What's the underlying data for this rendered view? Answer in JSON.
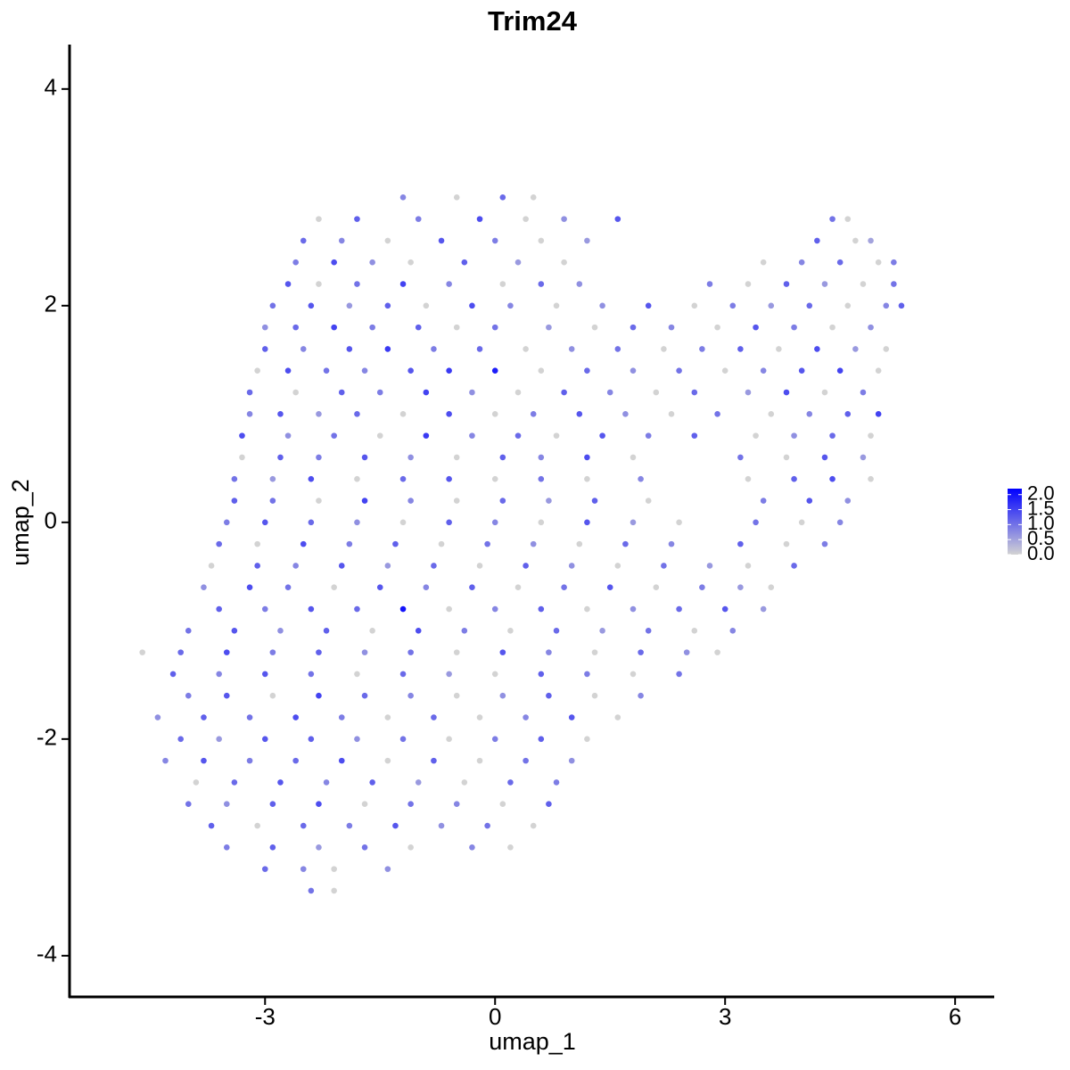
{
  "chart_data": {
    "type": "scatter",
    "title": "Trim24",
    "x_label": "umap_1",
    "y_label": "umap_2",
    "xlim": [
      -5.55,
      6.51
    ],
    "ylim": [
      -4.38,
      4.41
    ],
    "xticks": [
      -3,
      0,
      3,
      6
    ],
    "yticks": [
      -4,
      -2,
      0,
      2,
      4
    ],
    "color_low": "#d3d3d3",
    "color_high": "#0000ff",
    "color_lim": [
      0,
      2.2
    ],
    "legend_ticks": [
      {
        "value": 0,
        "label": "0.0"
      },
      {
        "value": 0.5,
        "label": "0.5"
      },
      {
        "value": 1,
        "label": "1.0"
      },
      {
        "value": 1.5,
        "label": "1.5"
      },
      {
        "value": 2,
        "label": "2.0"
      }
    ],
    "x": [
      -1.2,
      -0.5,
      0.1,
      0.5,
      -2.3,
      -1.8,
      -1.0,
      -0.2,
      0.4,
      0.9,
      1.6,
      4.4,
      4.6,
      -2.5,
      -2.0,
      -1.4,
      -0.7,
      0.0,
      0.6,
      1.2,
      4.2,
      4.7,
      4.9,
      -2.6,
      -2.1,
      -1.6,
      -1.1,
      -0.4,
      0.3,
      0.9,
      3.5,
      4.0,
      4.5,
      5.0,
      5.2,
      -2.7,
      -2.3,
      -1.8,
      -1.2,
      -0.6,
      0.1,
      0.6,
      1.1,
      2.8,
      3.3,
      3.8,
      4.3,
      4.8,
      5.2,
      -2.9,
      -2.4,
      -1.9,
      -1.4,
      -0.9,
      -0.3,
      0.2,
      0.8,
      1.4,
      2.0,
      2.6,
      3.1,
      3.6,
      4.1,
      4.6,
      5.1,
      5.3,
      -3.0,
      -2.6,
      -2.1,
      -1.6,
      -1.0,
      -0.5,
      0.0,
      0.7,
      1.3,
      1.8,
      2.3,
      2.9,
      3.4,
      3.9,
      4.4,
      4.9,
      -3.0,
      -2.5,
      -1.9,
      -1.4,
      -0.8,
      -0.2,
      0.4,
      1.0,
      1.6,
      2.2,
      2.7,
      3.2,
      3.7,
      4.2,
      4.7,
      5.1,
      -3.1,
      -2.7,
      -2.2,
      -1.7,
      -1.1,
      -0.6,
      0.0,
      0.6,
      1.2,
      1.8,
      2.4,
      3.0,
      3.5,
      4.0,
      4.5,
      5.0,
      -3.2,
      -2.6,
      -2.0,
      -1.5,
      -0.9,
      -0.3,
      0.3,
      0.9,
      1.5,
      2.1,
      2.6,
      3.3,
      3.8,
      4.3,
      4.8,
      -3.2,
      -2.8,
      -2.3,
      -1.8,
      -1.2,
      -0.6,
      0.0,
      0.5,
      1.1,
      1.7,
      2.3,
      2.9,
      3.6,
      4.1,
      4.6,
      5.0,
      -3.3,
      -2.7,
      -2.1,
      -1.5,
      -0.9,
      -0.3,
      0.3,
      0.8,
      1.4,
      2.0,
      2.6,
      3.4,
      3.9,
      4.4,
      4.9,
      -3.3,
      -2.8,
      -2.3,
      -1.7,
      -1.1,
      -0.5,
      0.1,
      0.6,
      1.2,
      1.8,
      3.2,
      3.8,
      4.3,
      4.8,
      -3.4,
      -2.9,
      -2.4,
      -1.8,
      -1.2,
      -0.6,
      0.0,
      0.6,
      1.2,
      1.9,
      3.3,
      3.9,
      4.4,
      4.9,
      -3.4,
      -2.9,
      -2.3,
      -1.7,
      -1.1,
      -0.5,
      0.1,
      0.7,
      1.3,
      2.0,
      3.5,
      4.1,
      4.6,
      -3.5,
      -3.0,
      -2.4,
      -1.8,
      -1.2,
      -0.6,
      0.0,
      0.6,
      1.2,
      1.8,
      2.4,
      3.4,
      4.0,
      4.5,
      -3.6,
      -3.1,
      -2.5,
      -1.9,
      -1.3,
      -0.7,
      -0.1,
      0.5,
      1.1,
      1.7,
      2.3,
      3.2,
      3.8,
      4.3,
      -3.7,
      -3.1,
      -2.6,
      -2.0,
      -1.4,
      -0.8,
      -0.2,
      0.4,
      1.0,
      1.6,
      2.2,
      2.8,
      3.3,
      3.9,
      -3.8,
      -3.2,
      -2.7,
      -2.1,
      -1.5,
      -0.9,
      -0.3,
      0.3,
      0.9,
      1.5,
      2.1,
      2.7,
      3.2,
      3.6,
      -3.6,
      -3.0,
      -2.4,
      -1.8,
      -1.2,
      -0.6,
      0.0,
      0.6,
      1.2,
      1.8,
      2.4,
      3.0,
      3.5,
      -4.0,
      -3.4,
      -2.8,
      -2.2,
      -1.6,
      -1.0,
      -0.4,
      0.2,
      0.8,
      1.4,
      2.0,
      2.6,
      3.1,
      -4.6,
      -4.1,
      -3.5,
      -2.9,
      -2.3,
      -1.7,
      -1.1,
      -0.5,
      0.1,
      0.7,
      1.3,
      1.9,
      2.5,
      2.9,
      -4.2,
      -3.6,
      -3.0,
      -2.4,
      -1.8,
      -1.2,
      -0.6,
      0.0,
      0.6,
      1.2,
      1.8,
      2.4,
      -4.0,
      -3.5,
      -2.9,
      -2.3,
      -1.7,
      -1.1,
      -0.5,
      0.1,
      0.7,
      1.3,
      1.9,
      -4.4,
      -3.8,
      -3.2,
      -2.6,
      -2.0,
      -1.4,
      -0.8,
      -0.2,
      0.4,
      1.0,
      1.6,
      -4.1,
      -3.6,
      -3.0,
      -2.4,
      -1.8,
      -1.2,
      -0.6,
      0.0,
      0.6,
      1.2,
      -4.3,
      -3.8,
      -3.2,
      -2.6,
      -2.0,
      -1.4,
      -0.8,
      -0.2,
      0.4,
      1.0,
      -3.9,
      -3.4,
      -2.8,
      -2.2,
      -1.6,
      -1.0,
      -0.4,
      0.2,
      0.8,
      -4.0,
      -3.5,
      -2.9,
      -2.3,
      -1.7,
      -1.1,
      -0.5,
      0.1,
      0.7,
      -3.7,
      -3.1,
      -2.5,
      -1.9,
      -1.3,
      -0.7,
      -0.1,
      0.5,
      -3.5,
      -2.9,
      -2.3,
      -1.7,
      -1.1,
      -0.3,
      0.2,
      -3.0,
      -2.5,
      -2.1,
      -1.4,
      -2.4,
      -2.1
    ],
    "y": [
      3.0,
      3.0,
      3.0,
      3.0,
      2.8,
      2.8,
      2.8,
      2.8,
      2.8,
      2.8,
      2.8,
      2.8,
      2.8,
      2.6,
      2.6,
      2.6,
      2.6,
      2.6,
      2.6,
      2.6,
      2.6,
      2.6,
      2.6,
      2.4,
      2.4,
      2.4,
      2.4,
      2.4,
      2.4,
      2.4,
      2.4,
      2.4,
      2.4,
      2.4,
      2.4,
      2.2,
      2.2,
      2.2,
      2.2,
      2.2,
      2.2,
      2.2,
      2.2,
      2.2,
      2.2,
      2.2,
      2.2,
      2.2,
      2.2,
      2.0,
      2.0,
      2.0,
      2.0,
      2.0,
      2.0,
      2.0,
      2.0,
      2.0,
      2.0,
      2.0,
      2.0,
      2.0,
      2.0,
      2.0,
      2.0,
      2.0,
      1.8,
      1.8,
      1.8,
      1.8,
      1.8,
      1.8,
      1.8,
      1.8,
      1.8,
      1.8,
      1.8,
      1.8,
      1.8,
      1.8,
      1.8,
      1.8,
      1.6,
      1.6,
      1.6,
      1.6,
      1.6,
      1.6,
      1.6,
      1.6,
      1.6,
      1.6,
      1.6,
      1.6,
      1.6,
      1.6,
      1.6,
      1.6,
      1.4,
      1.4,
      1.4,
      1.4,
      1.4,
      1.4,
      1.4,
      1.4,
      1.4,
      1.4,
      1.4,
      1.4,
      1.4,
      1.4,
      1.4,
      1.4,
      1.2,
      1.2,
      1.2,
      1.2,
      1.2,
      1.2,
      1.2,
      1.2,
      1.2,
      1.2,
      1.2,
      1.2,
      1.2,
      1.2,
      1.2,
      1.0,
      1.0,
      1.0,
      1.0,
      1.0,
      1.0,
      1.0,
      1.0,
      1.0,
      1.0,
      1.0,
      1.0,
      1.0,
      1.0,
      1.0,
      1.0,
      0.8,
      0.8,
      0.8,
      0.8,
      0.8,
      0.8,
      0.8,
      0.8,
      0.8,
      0.8,
      0.8,
      0.8,
      0.8,
      0.8,
      0.8,
      0.6,
      0.6,
      0.6,
      0.6,
      0.6,
      0.6,
      0.6,
      0.6,
      0.6,
      0.6,
      0.6,
      0.6,
      0.6,
      0.6,
      0.4,
      0.4,
      0.4,
      0.4,
      0.4,
      0.4,
      0.4,
      0.4,
      0.4,
      0.4,
      0.4,
      0.4,
      0.4,
      0.4,
      0.2,
      0.2,
      0.2,
      0.2,
      0.2,
      0.2,
      0.2,
      0.2,
      0.2,
      0.2,
      0.2,
      0.2,
      0.2,
      0.0,
      0.0,
      0.0,
      0.0,
      0.0,
      0.0,
      0.0,
      0.0,
      0.0,
      0.0,
      0.0,
      0.0,
      0.0,
      0.0,
      -0.2,
      -0.2,
      -0.2,
      -0.2,
      -0.2,
      -0.2,
      -0.2,
      -0.2,
      -0.2,
      -0.2,
      -0.2,
      -0.2,
      -0.2,
      -0.2,
      -0.4,
      -0.4,
      -0.4,
      -0.4,
      -0.4,
      -0.4,
      -0.4,
      -0.4,
      -0.4,
      -0.4,
      -0.4,
      -0.4,
      -0.4,
      -0.4,
      -0.6,
      -0.6,
      -0.6,
      -0.6,
      -0.6,
      -0.6,
      -0.6,
      -0.6,
      -0.6,
      -0.6,
      -0.6,
      -0.6,
      -0.6,
      -0.6,
      -0.8,
      -0.8,
      -0.8,
      -0.8,
      -0.8,
      -0.8,
      -0.8,
      -0.8,
      -0.8,
      -0.8,
      -0.8,
      -0.8,
      -0.8,
      -1.0,
      -1.0,
      -1.0,
      -1.0,
      -1.0,
      -1.0,
      -1.0,
      -1.0,
      -1.0,
      -1.0,
      -1.0,
      -1.0,
      -1.0,
      -1.2,
      -1.2,
      -1.2,
      -1.2,
      -1.2,
      -1.2,
      -1.2,
      -1.2,
      -1.2,
      -1.2,
      -1.2,
      -1.2,
      -1.2,
      -1.2,
      -1.4,
      -1.4,
      -1.4,
      -1.4,
      -1.4,
      -1.4,
      -1.4,
      -1.4,
      -1.4,
      -1.4,
      -1.4,
      -1.4,
      -1.6,
      -1.6,
      -1.6,
      -1.6,
      -1.6,
      -1.6,
      -1.6,
      -1.6,
      -1.6,
      -1.6,
      -1.6,
      -1.8,
      -1.8,
      -1.8,
      -1.8,
      -1.8,
      -1.8,
      -1.8,
      -1.8,
      -1.8,
      -1.8,
      -1.8,
      -2.0,
      -2.0,
      -2.0,
      -2.0,
      -2.0,
      -2.0,
      -2.0,
      -2.0,
      -2.0,
      -2.0,
      -2.2,
      -2.2,
      -2.2,
      -2.2,
      -2.2,
      -2.2,
      -2.2,
      -2.2,
      -2.2,
      -2.2,
      -2.4,
      -2.4,
      -2.4,
      -2.4,
      -2.4,
      -2.4,
      -2.4,
      -2.4,
      -2.4,
      -2.6,
      -2.6,
      -2.6,
      -2.6,
      -2.6,
      -2.6,
      -2.6,
      -2.6,
      -2.6,
      -2.8,
      -2.8,
      -2.8,
      -2.8,
      -2.8,
      -2.8,
      -2.8,
      -2.8,
      -3.0,
      -3.0,
      -3.0,
      -3.0,
      -3.0,
      -3.0,
      -3.0,
      -3.2,
      -3.2,
      -3.2,
      -3.2,
      -3.4,
      -3.4
    ],
    "values": [
      0.8,
      0,
      1.1,
      0,
      0,
      1.2,
      0.9,
      1.4,
      0,
      0.7,
      1.3,
      1.0,
      0,
      1.1,
      0.8,
      0,
      1.3,
      0.9,
      0,
      0.6,
      1.2,
      0,
      0.5,
      0.9,
      1.4,
      0.7,
      0,
      1.2,
      0.6,
      0,
      0,
      0.8,
      1.1,
      0,
      0.9,
      1.3,
      0,
      1.0,
      1.5,
      0.8,
      0,
      1.1,
      0.7,
      0.9,
      0,
      1.2,
      0.6,
      0,
      1.0,
      1.0,
      1.3,
      0.6,
      1.2,
      0,
      1.4,
      0.8,
      0,
      0.7,
      1.3,
      0,
      0.9,
      0.6,
      1.1,
      0,
      0.8,
      1.2,
      0.7,
      1.1,
      1.5,
      0.9,
      1.2,
      0,
      1.0,
      0.6,
      0,
      1.1,
      0.8,
      0,
      1.3,
      0.9,
      0,
      0.7,
      1.2,
      0.8,
      1.3,
      1.6,
      0.9,
      1.1,
      0,
      0.7,
      1.0,
      0,
      0.9,
      1.2,
      0,
      1.4,
      0.6,
      0,
      0,
      1.4,
      1.0,
      0.8,
      1.3,
      1.6,
      1.9,
      0,
      1.1,
      0.7,
      1.0,
      0,
      0.8,
      1.3,
      1.5,
      0,
      1.1,
      0,
      1.2,
      0.9,
      1.5,
      0.7,
      0,
      1.2,
      0.8,
      0,
      1.1,
      0.6,
      1.4,
      0,
      0.9,
      0.8,
      1.3,
      0.6,
      1.1,
      0,
      1.4,
      0,
      0.9,
      1.3,
      0.7,
      0,
      1.0,
      0,
      0.8,
      1.2,
      1.5,
      1.4,
      0.7,
      1.0,
      0,
      1.6,
      0.8,
      1.1,
      0,
      1.3,
      0.9,
      1.2,
      0,
      0.7,
      1.1,
      0,
      0,
      1.2,
      0.9,
      1.3,
      0.7,
      0,
      1.2,
      0.8,
      1.4,
      0,
      1.0,
      0,
      1.3,
      0.6,
      1.0,
      0.6,
      1.4,
      0,
      1.1,
      1.3,
      0,
      1.0,
      0,
      0.8,
      0,
      1.2,
      1.4,
      0,
      1.2,
      1.0,
      0,
      1.5,
      0.8,
      0,
      1.1,
      0.6,
      1.2,
      0,
      0.9,
      1.3,
      0.7,
      0.9,
      1.3,
      1.1,
      0.7,
      0,
      1.2,
      0.8,
      0,
      1.3,
      0.6,
      0,
      1.0,
      0,
      0.8,
      1.1,
      0,
      1.4,
      0.9,
      1.2,
      0,
      1.0,
      0.7,
      0,
      1.1,
      0.8,
      1.2,
      0,
      0.9,
      0,
      1.2,
      0.8,
      1.3,
      0.6,
      1.1,
      0,
      1.2,
      0.7,
      0,
      1.0,
      0.6,
      0,
      1.1,
      0.7,
      1.4,
      1.0,
      0,
      1.3,
      0.8,
      1.2,
      0,
      1.0,
      1.3,
      0,
      0.9,
      0.6,
      0,
      1.2,
      0.9,
      1.3,
      1.1,
      2.0,
      0,
      0.8,
      1.2,
      0,
      0.7,
      1.1,
      1.3,
      0.6,
      1.0,
      1.3,
      0.7,
      1.2,
      0,
      1.4,
      0.9,
      0,
      1.1,
      0.6,
      1.0,
      0,
      0.8,
      0,
      1.1,
      1.4,
      0.9,
      1.2,
      0.7,
      1.0,
      0,
      1.3,
      0.8,
      0,
      1.1,
      0.7,
      0,
      1.2,
      0.8,
      1.3,
      1.0,
      0,
      1.1,
      0.6,
      0,
      1.2,
      0.9,
      0,
      1.0,
      0.9,
      1.3,
      0,
      1.5,
      1.1,
      0.8,
      0,
      0.7,
      1.2,
      0,
      0.8,
      0.7,
      1.2,
      1.0,
      1.4,
      0.9,
      0,
      1.1,
      0,
      0.8,
      1.3,
      0,
      1.1,
      0.6,
      1.3,
      1.2,
      0.7,
      1.0,
      0,
      0.9,
      1.2,
      0,
      0.8,
      1.3,
      0.9,
      1.1,
      1.4,
      0,
      1.2,
      0,
      1.0,
      0.7,
      0,
      1.1,
      1.3,
      0.8,
      1.2,
      0.6,
      0,
      1.1,
      0.9,
      1.0,
      0.7,
      1.2,
      1.4,
      0,
      1.0,
      0.8,
      0,
      1.2,
      1.2,
      0,
      1.1,
      0.9,
      1.3,
      0.7,
      1.0,
      0,
      0.9,
      1.2,
      0.6,
      1.0,
      0,
      0.8,
      0,
      1.1,
      0.8,
      0,
      0.7,
      1.0,
      0
    ]
  }
}
